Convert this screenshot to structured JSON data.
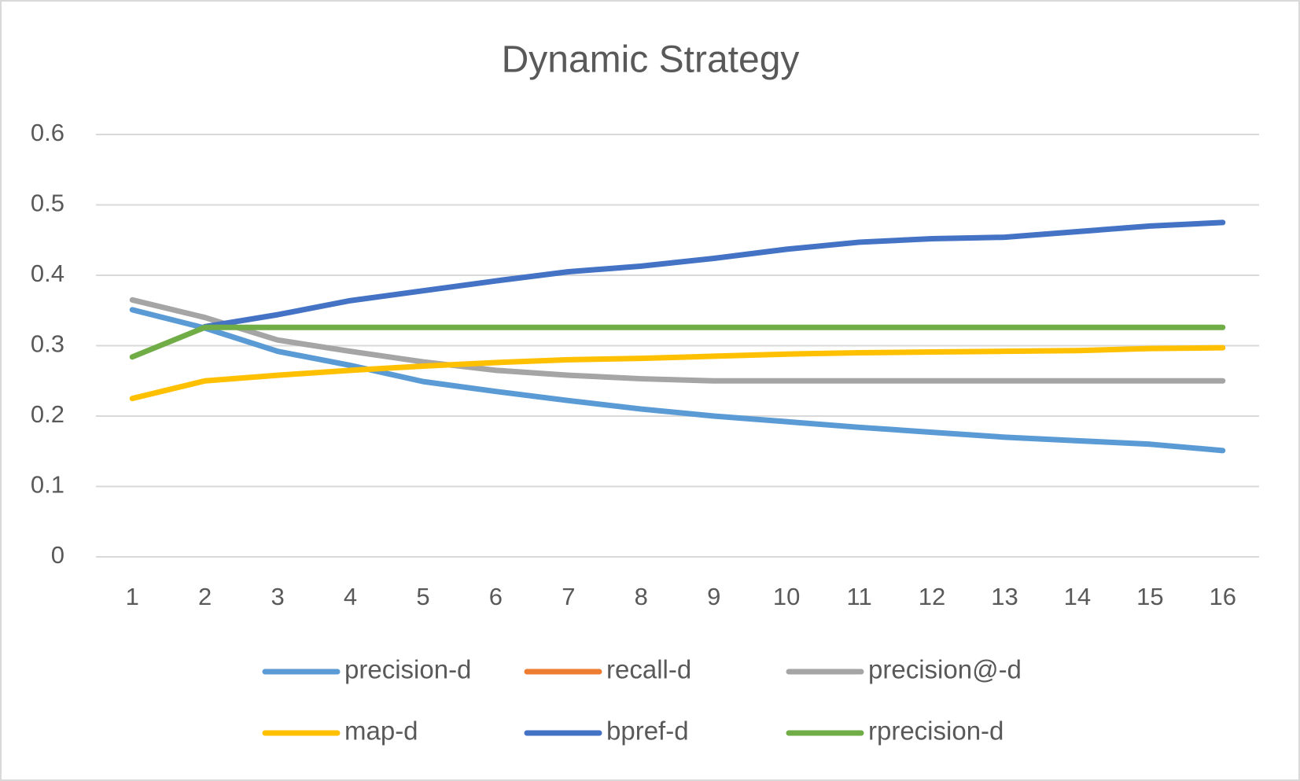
{
  "chart_data": {
    "type": "line",
    "title": "Dynamic Strategy",
    "categories": [
      "1",
      "2",
      "3",
      "4",
      "5",
      "6",
      "7",
      "8",
      "9",
      "10",
      "11",
      "12",
      "13",
      "14",
      "15",
      "16"
    ],
    "ylim": [
      0,
      0.6
    ],
    "yticks": [
      0,
      0.1,
      0.2,
      0.3,
      0.4,
      0.5,
      0.6
    ],
    "grid": true,
    "legend": "bottom",
    "series": [
      {
        "name": "precision-d",
        "color": "#5b9bd5",
        "values": [
          0.351,
          0.325,
          0.292,
          0.272,
          0.249,
          0.235,
          0.222,
          0.21,
          0.2,
          0.192,
          0.184,
          0.177,
          0.17,
          0.165,
          0.16,
          0.151
        ]
      },
      {
        "name": "recall-d",
        "color": "#ed7d31",
        "values": [
          null,
          null,
          null,
          null,
          null,
          null,
          null,
          null,
          null,
          null,
          null,
          null,
          null,
          null,
          null,
          null
        ]
      },
      {
        "name": "precision@-d",
        "color": "#a5a5a5",
        "values": [
          0.365,
          0.34,
          0.308,
          0.292,
          0.277,
          0.265,
          0.258,
          0.253,
          0.25,
          0.25,
          0.25,
          0.25,
          0.25,
          0.25,
          0.25,
          0.25
        ]
      },
      {
        "name": "map-d",
        "color": "#ffc000",
        "values": [
          0.225,
          0.25,
          0.258,
          0.265,
          0.271,
          0.276,
          0.28,
          0.282,
          0.285,
          0.288,
          0.29,
          0.291,
          0.292,
          0.293,
          0.296,
          0.297
        ]
      },
      {
        "name": "bpref-d",
        "color": "#4472c4",
        "values": [
          null,
          0.327,
          0.344,
          0.364,
          0.378,
          0.392,
          0.405,
          0.413,
          0.424,
          0.437,
          0.447,
          0.452,
          0.454,
          0.462,
          0.47,
          0.475
        ]
      },
      {
        "name": "rprecision-d",
        "color": "#70ad47",
        "values": [
          0.284,
          0.326,
          0.326,
          0.326,
          0.326,
          0.326,
          0.326,
          0.326,
          0.326,
          0.326,
          0.326,
          0.326,
          0.326,
          0.326,
          0.326,
          0.326
        ]
      }
    ]
  }
}
